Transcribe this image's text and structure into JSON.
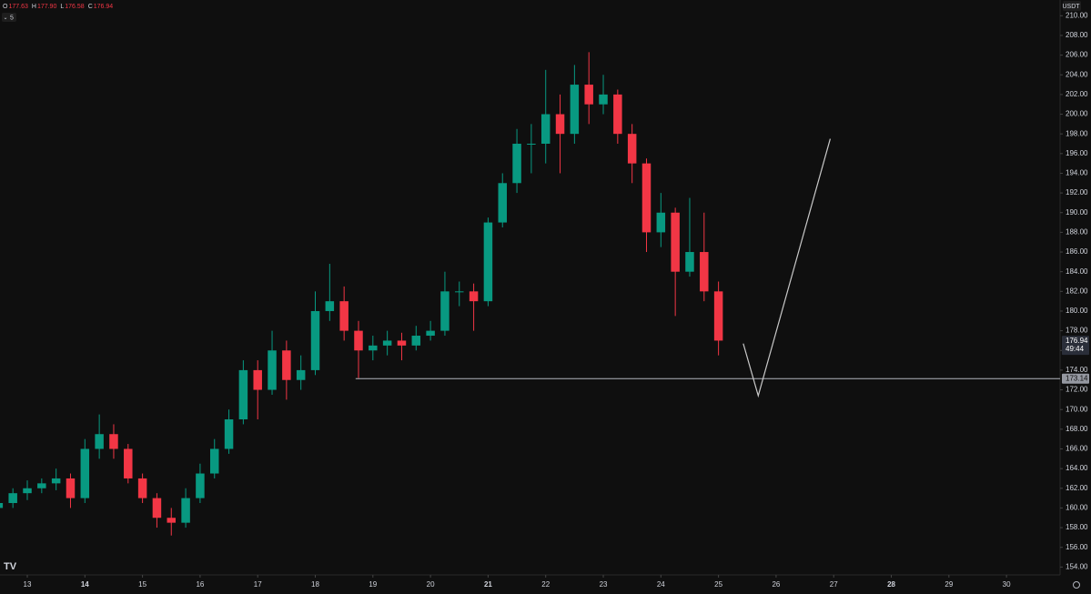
{
  "chart_data": {
    "type": "candlestick",
    "currency": "USDT",
    "interval": "5",
    "ohlc_header": {
      "labels": [
        "O",
        "H",
        "L",
        "C"
      ],
      "values": [
        {
          "value": 177.63,
          "label": "177.63"
        },
        {
          "value": 177.9,
          "label": "177.90"
        },
        {
          "value": 176.58,
          "label": "176.58"
        },
        {
          "value": 176.94,
          "label": "176.94"
        }
      ]
    },
    "up_color": "#089981",
    "down_color": "#f23645",
    "x": [
      12.5,
      12.75,
      13,
      13.25,
      13.5,
      13.75,
      14,
      14.25,
      14.5,
      14.75,
      15,
      15.25,
      15.5,
      15.75,
      16,
      16.25,
      16.5,
      16.75,
      17,
      17.25,
      17.5,
      17.75,
      18,
      18.25,
      18.5,
      18.75,
      19,
      19.25,
      19.5,
      19.75,
      20,
      20.25,
      20.5,
      20.75,
      21,
      21.25,
      21.5,
      21.75,
      22,
      22.25,
      22.5,
      22.75,
      23,
      23.25,
      23.5,
      23.75,
      24,
      24.25,
      24.5,
      24.75,
      25
    ],
    "open": [
      160,
      160.5,
      161.5,
      162,
      162.5,
      163,
      161,
      166,
      167.5,
      166,
      163,
      161,
      159,
      158.5,
      161,
      163.5,
      166,
      169,
      174,
      172,
      176,
      173,
      174,
      180,
      181,
      178,
      176,
      176.5,
      177,
      176.5,
      177.5,
      178,
      182,
      182,
      181,
      189,
      193,
      197,
      197,
      200,
      198,
      203,
      201,
      202,
      198,
      195,
      188,
      190,
      184,
      186,
      182
    ],
    "high": [
      161.2,
      162,
      162.8,
      163,
      164,
      163.5,
      167,
      169.5,
      168.5,
      166.5,
      163.5,
      161.5,
      160,
      162,
      164.5,
      167,
      170,
      175,
      175,
      178,
      177,
      175.5,
      182,
      184.8,
      182.5,
      179,
      177.5,
      178,
      177.8,
      178.5,
      179,
      184,
      183,
      182.8,
      189.5,
      194,
      198.5,
      199,
      204.5,
      202,
      205,
      206.3,
      204,
      202.5,
      199,
      195.5,
      192,
      190.5,
      191.5,
      190,
      183
    ],
    "low": [
      159.5,
      160,
      160.8,
      161.5,
      161.8,
      160,
      160.5,
      165,
      165,
      162.5,
      160.5,
      158,
      157.2,
      158,
      160.5,
      163,
      165.5,
      168.5,
      169,
      171.5,
      171,
      172,
      173.5,
      179,
      177,
      173.2,
      175,
      175.5,
      175,
      176,
      177,
      177.5,
      180.5,
      178,
      180.5,
      188.5,
      192,
      194,
      195,
      194,
      197,
      199,
      200,
      197,
      193,
      186,
      186.5,
      179.5,
      183.5,
      181,
      175.5
    ],
    "close": [
      160.5,
      161.5,
      162,
      162.5,
      163,
      161,
      166,
      167.5,
      166,
      163,
      161,
      159,
      158.5,
      161,
      163.5,
      166,
      169,
      174,
      172,
      176,
      173,
      174,
      180,
      181,
      178,
      176,
      176.5,
      177,
      176.5,
      177.5,
      178,
      182,
      182,
      181,
      189,
      193,
      197,
      197,
      200,
      198,
      203,
      201,
      202,
      198,
      195,
      188,
      190,
      184,
      186,
      182,
      177
    ],
    "current_price": {
      "value": 176.94,
      "label": "176.94"
    },
    "countdown": "49:44",
    "horizontal_line": {
      "x_start": 18.7,
      "value": 173.14,
      "label": "173.14"
    },
    "drawing": {
      "x": [
        25.43,
        25.69,
        26.94
      ],
      "y": [
        176.7,
        171.4,
        197.5
      ]
    },
    "xlim": [
      12.526,
      30.93
    ],
    "xticks": [
      13,
      14,
      15,
      16,
      17,
      18,
      19,
      20,
      21,
      22,
      23,
      24,
      25,
      26,
      27,
      28,
      29,
      30
    ],
    "major_xticks": [
      14,
      21,
      28
    ],
    "ylim": [
      153.2,
      211.6
    ],
    "yticks": [
      {
        "value": 154,
        "label": "154.00"
      },
      {
        "value": 156,
        "label": "156.00"
      },
      {
        "value": 158,
        "label": "158.00"
      },
      {
        "value": 160,
        "label": "160.00"
      },
      {
        "value": 162,
        "label": "162.00"
      },
      {
        "value": 164,
        "label": "164.00"
      },
      {
        "value": 166,
        "label": "166.00"
      },
      {
        "value": 168,
        "label": "168.00"
      },
      {
        "value": 170,
        "label": "170.00"
      },
      {
        "value": 172,
        "label": "172.00"
      },
      {
        "value": 174,
        "label": "174.00"
      },
      {
        "value": 176,
        "label": "176.00"
      },
      {
        "value": 178,
        "label": "178.00"
      },
      {
        "value": 180,
        "label": "180.00"
      },
      {
        "value": 182,
        "label": "182.00"
      },
      {
        "value": 184,
        "label": "184.00"
      },
      {
        "value": 186,
        "label": "186.00"
      },
      {
        "value": 188,
        "label": "188.00"
      },
      {
        "value": 190,
        "label": "190.00"
      },
      {
        "value": 192,
        "label": "192.00"
      },
      {
        "value": 194,
        "label": "194.00"
      },
      {
        "value": 196,
        "label": "196.00"
      },
      {
        "value": 198,
        "label": "198.00"
      },
      {
        "value": 200,
        "label": "200.00"
      },
      {
        "value": 202,
        "label": "202.00"
      },
      {
        "value": 204,
        "label": "204.00"
      },
      {
        "value": 206,
        "label": "206.00"
      },
      {
        "value": 208,
        "label": "208.00"
      },
      {
        "value": 210,
        "label": "210.00"
      }
    ]
  }
}
